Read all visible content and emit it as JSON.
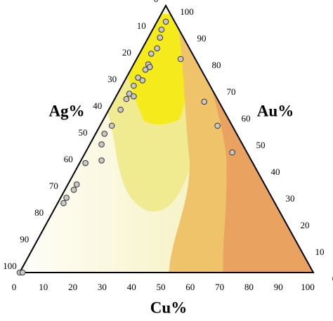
{
  "chart_data": {
    "type": "ternary",
    "a_label": "Cu%",
    "b_label": "Ag%",
    "c_label": "Au%",
    "aticks": [
      0,
      10,
      20,
      30,
      40,
      50,
      60,
      70,
      80,
      90,
      100
    ],
    "bticks": [
      0,
      10,
      20,
      30,
      40,
      50,
      60,
      70,
      80,
      90,
      100
    ],
    "cticks": [
      0,
      10,
      20,
      30,
      40,
      50,
      60,
      70,
      80,
      90,
      100
    ],
    "series": [
      {
        "color": "#c8c8c8",
        "a": [
          3,
          3,
          4,
          5,
          4,
          5,
          6,
          5,
          4,
          6,
          4,
          4,
          6,
          4,
          4,
          4,
          3,
          4,
          7,
          2,
          3,
          3,
          2,
          2,
          0,
          1,
          15,
          31,
          40,
          50
        ],
        "b": [
          3,
          6,
          8,
          11,
          14,
          17,
          17,
          19,
          23,
          22,
          26,
          29,
          28,
          31,
          35,
          41,
          45,
          48,
          51,
          57,
          64,
          66,
          70,
          72,
          100,
          99,
          5,
          5,
          5,
          5
        ],
        "c": [
          94,
          91,
          88,
          84,
          82,
          78,
          77,
          76,
          73,
          72,
          70,
          67,
          66,
          65,
          61,
          55,
          52,
          48,
          42,
          41,
          33,
          31,
          28,
          26,
          0,
          0,
          80,
          64,
          55,
          45
        ]
      }
    ]
  }
}
